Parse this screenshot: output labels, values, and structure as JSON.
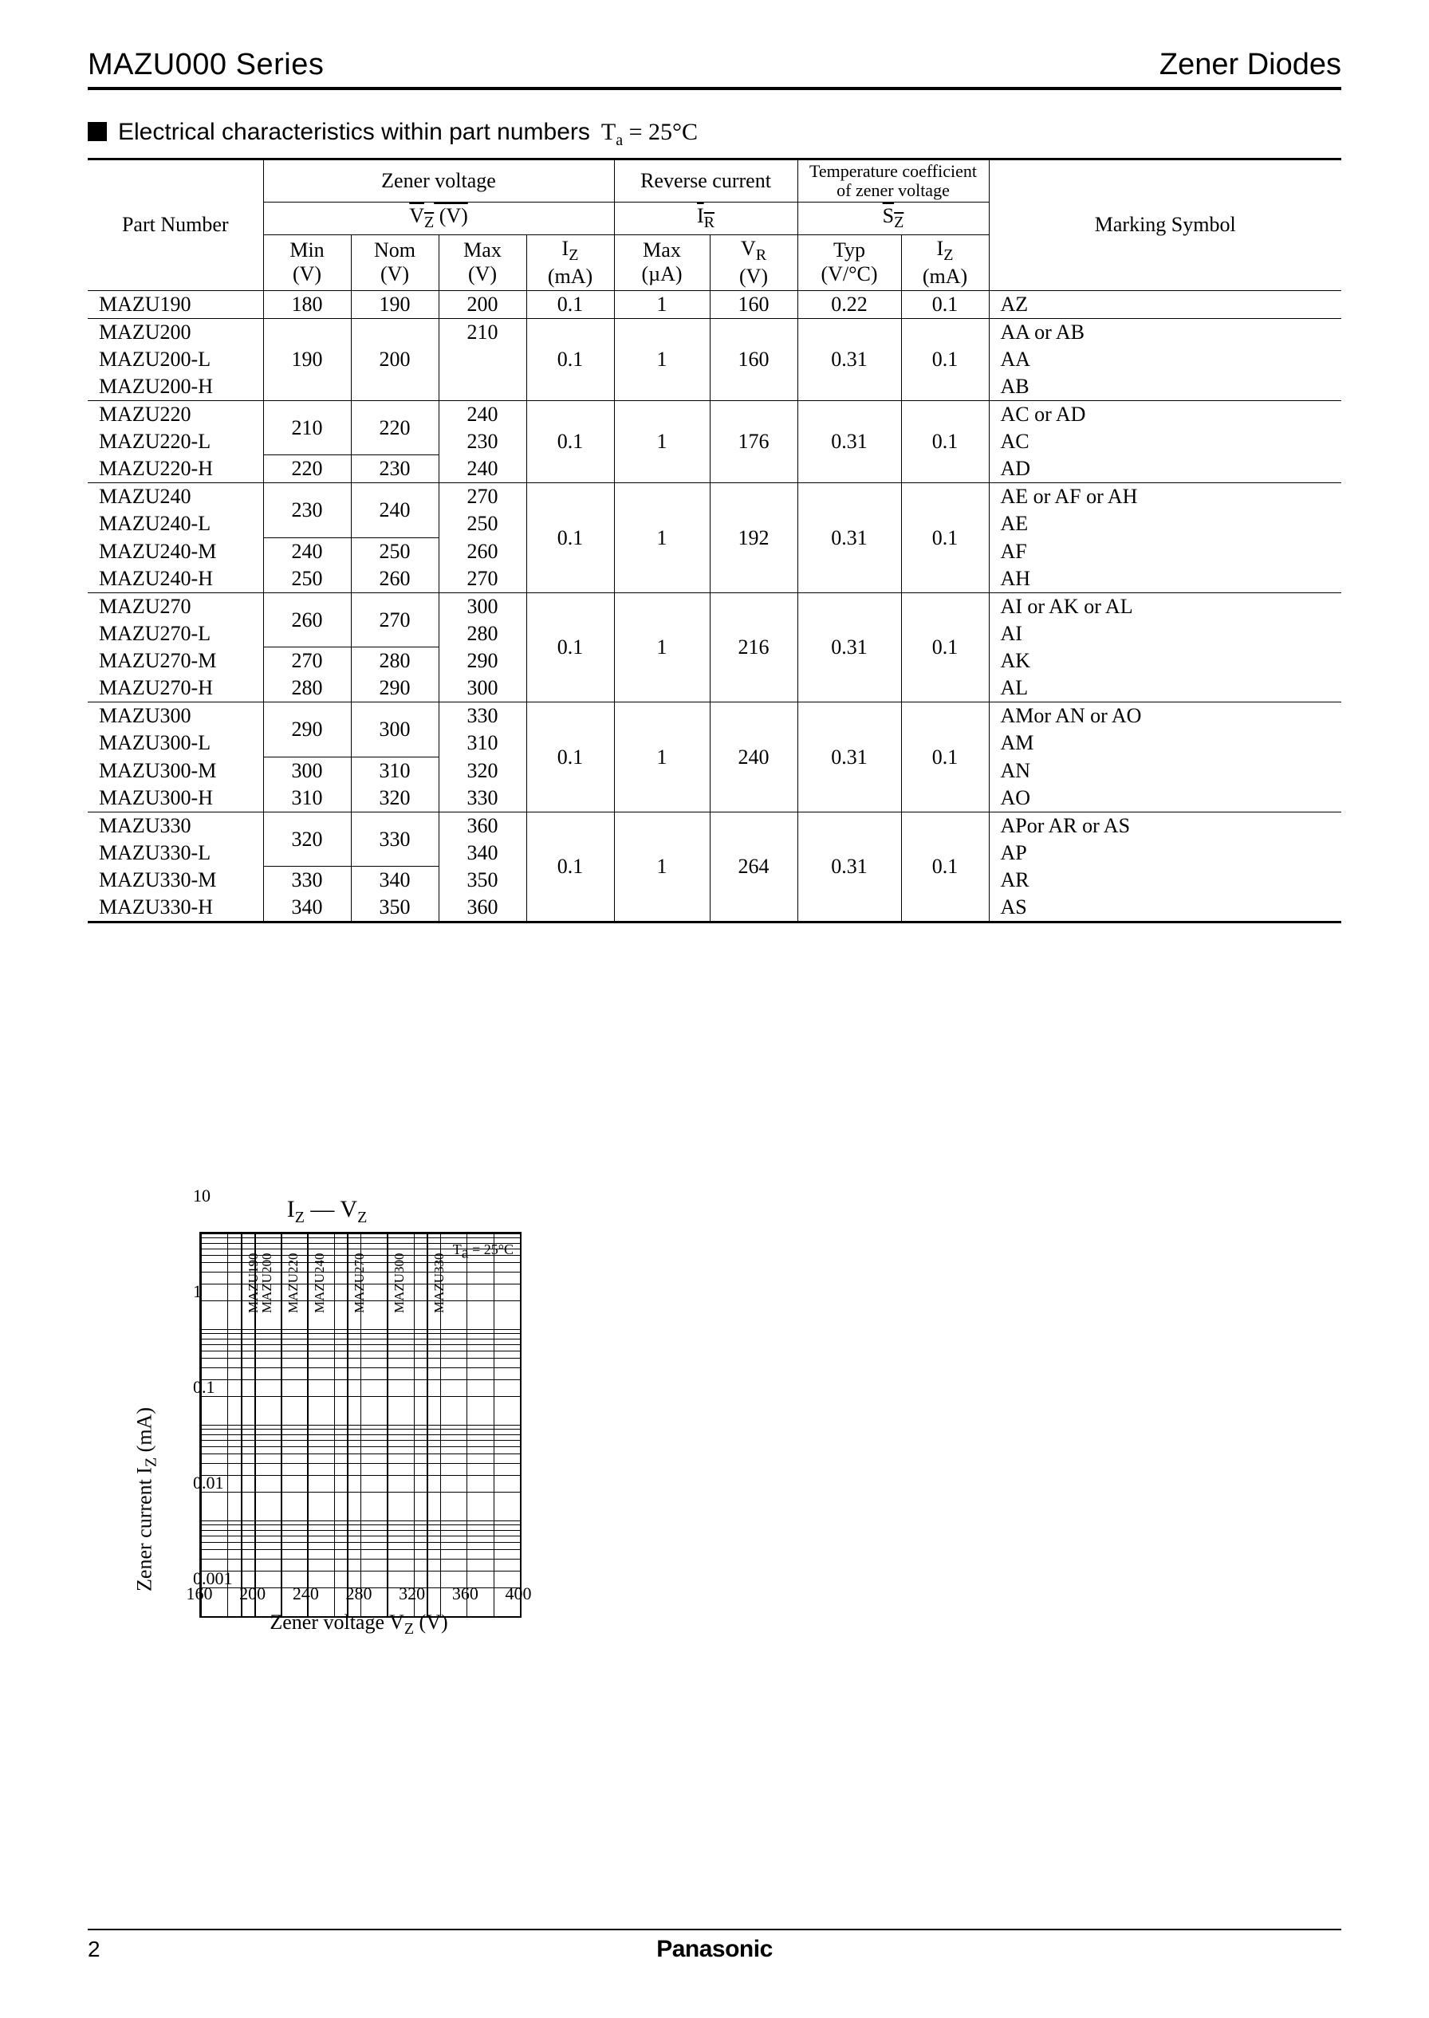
{
  "header": {
    "left": "MAZU000 Series",
    "right": "Zener Diodes"
  },
  "section": {
    "title": "Electrical characteristics within part numbers",
    "condition_prefix": "T",
    "condition_sub": "a",
    "condition_rest": " = 25°C"
  },
  "table": {
    "group_headers": {
      "part_number": "Part Number",
      "zener_voltage": "Zener voltage",
      "reverse_current": "Reverse current",
      "temp_coeff_l1": "Temperature coefficient",
      "temp_coeff_l2": "of zener voltage",
      "marking": "Marking Symbol"
    },
    "sub_headers": {
      "vz": "V",
      "vz_sub": "Z",
      "vz_unit": " (V)",
      "ir": "I",
      "ir_sub": "R",
      "sz": "S",
      "sz_sub": "Z"
    },
    "cols": {
      "min": "Min",
      "min_u": "(V)",
      "nom": "Nom",
      "nom_u": "(V)",
      "max": "Max",
      "max_u": "(V)",
      "iz": "I",
      "iz_sub": "Z",
      "iz_u": "(mA)",
      "irmax": "Max",
      "irmax_u": "(µA)",
      "vr": "V",
      "vr_sub": "R",
      "vr_u": "(V)",
      "typ": "Typ",
      "typ_u": "(V/°C)",
      "iz2": "I",
      "iz2_sub": "Z",
      "iz2_u": "(mA)"
    },
    "groups": [
      {
        "rows": [
          {
            "pn": "MAZU190",
            "min": "180",
            "nom": "190",
            "max": "200",
            "iz": "0.1",
            "irmax": "1",
            "vr": "160",
            "typ": "0.22",
            "iz2": "0.1",
            "mark": "AZ"
          }
        ],
        "sep": "thin"
      },
      {
        "rows": [
          {
            "pn": "MAZU200",
            "min": "190",
            "nom": "200",
            "max": "210",
            "iz": "0.1",
            "irmax": "1",
            "vr": "160",
            "typ": "0.31",
            "iz2": "0.1",
            "mark": "AA or AB",
            "span": 3
          },
          {
            "pn": "MAZU200-L",
            "mark": "AA"
          },
          {
            "pn": "MAZU200-H",
            "mark": "AB"
          }
        ],
        "sep": "thin"
      },
      {
        "rows": [
          {
            "pn": "MAZU220",
            "min": "210",
            "nom": "220",
            "max": "240",
            "iz": "0.1",
            "irmax": "1",
            "vr": "176",
            "typ": "0.31",
            "iz2": "0.1",
            "mark": "AC or AD",
            "span_mn": 2,
            "span_rest": 3
          },
          {
            "pn": "MAZU220-L",
            "max": "230",
            "mark": "AC"
          },
          {
            "pn": "MAZU220-H",
            "min": "220",
            "nom": "230",
            "max": "240",
            "mark": "AD"
          }
        ],
        "sep": "thin"
      },
      {
        "rows": [
          {
            "pn": "MAZU240",
            "min": "230",
            "nom": "240",
            "max": "270",
            "iz": "0.1",
            "irmax": "1",
            "vr": "192",
            "typ": "0.31",
            "iz2": "0.1",
            "mark": "AE or AF or AH",
            "span_mn": 2,
            "span_rest": 4
          },
          {
            "pn": "MAZU240-L",
            "max": "250",
            "mark": "AE"
          },
          {
            "pn": "MAZU240-M",
            "min": "240",
            "nom": "250",
            "max": "260",
            "mark": "AF"
          },
          {
            "pn": "MAZU240-H",
            "min": "250",
            "nom": "260",
            "max": "270",
            "mark": "AH"
          }
        ],
        "sep": "thin"
      },
      {
        "rows": [
          {
            "pn": "MAZU270",
            "min": "260",
            "nom": "270",
            "max": "300",
            "iz": "0.1",
            "irmax": "1",
            "vr": "216",
            "typ": "0.31",
            "iz2": "0.1",
            "mark": "AI or AK or AL",
            "span_mn": 2,
            "span_rest": 4
          },
          {
            "pn": "MAZU270-L",
            "max": "280",
            "mark": "AI"
          },
          {
            "pn": "MAZU270-M",
            "min": "270",
            "nom": "280",
            "max": "290",
            "mark": "AK"
          },
          {
            "pn": "MAZU270-H",
            "min": "280",
            "nom": "290",
            "max": "300",
            "mark": "AL"
          }
        ],
        "sep": "thin"
      },
      {
        "rows": [
          {
            "pn": "MAZU300",
            "min": "290",
            "nom": "300",
            "max": "330",
            "iz": "0.1",
            "irmax": "1",
            "vr": "240",
            "typ": "0.31",
            "iz2": "0.1",
            "mark": "AMor AN or AO",
            "span_mn": 2,
            "span_rest": 4
          },
          {
            "pn": "MAZU300-L",
            "max": "310",
            "mark": "AM"
          },
          {
            "pn": "MAZU300-M",
            "min": "300",
            "nom": "310",
            "max": "320",
            "mark": "AN"
          },
          {
            "pn": "MAZU300-H",
            "min": "310",
            "nom": "320",
            "max": "330",
            "mark": "AO"
          }
        ],
        "sep": "thin"
      },
      {
        "rows": [
          {
            "pn": "MAZU330",
            "min": "320",
            "nom": "330",
            "max": "360",
            "iz": "0.1",
            "irmax": "1",
            "vr": "264",
            "typ": "0.31",
            "iz2": "0.1",
            "mark": "APor AR or AS",
            "span_mn": 2,
            "span_rest": 4
          },
          {
            "pn": "MAZU330-L",
            "max": "340",
            "mark": "AP"
          },
          {
            "pn": "MAZU330-M",
            "min": "330",
            "nom": "340",
            "max": "350",
            "mark": "AR"
          },
          {
            "pn": "MAZU330-H",
            "min": "340",
            "nom": "350",
            "max": "360",
            "mark": "AS"
          }
        ],
        "sep": "thick"
      }
    ]
  },
  "chart": {
    "title_l": "I",
    "title_lsub": "Z",
    "title_dash": " — ",
    "title_r": "V",
    "title_rsub": "Z",
    "ylabel_pre": "Zener current  I",
    "ylabel_sub": "Z",
    "ylabel_post": "   (mA)",
    "xlabel_pre": "Zener voltage  V",
    "xlabel_sub": "Z",
    "xlabel_post": "   (V)",
    "ta_pre": "T",
    "ta_sub": "a",
    "ta_post": " = 25°C",
    "xticks": [
      "160",
      "200",
      "240",
      "280",
      "320",
      "360",
      "400"
    ],
    "yticks": [
      "0.001",
      "0.01",
      "0.1",
      "1",
      "10"
    ],
    "xlim": [
      160,
      400
    ],
    "series": [
      {
        "name": "MAZU190",
        "v_at_0p1": 190
      },
      {
        "name": "MAZU200",
        "v_at_0p1": 200
      },
      {
        "name": "MAZU220",
        "v_at_0p1": 220
      },
      {
        "name": "MAZU240",
        "v_at_0p1": 240
      },
      {
        "name": "MAZU270",
        "v_at_0p1": 270
      },
      {
        "name": "MAZU300",
        "v_at_0p1": 300
      },
      {
        "name": "MAZU330",
        "v_at_0p1": 330
      }
    ],
    "colors": {
      "line": "#000000",
      "grid": "#000000",
      "bg": "#ffffff"
    }
  },
  "footer": {
    "page": "2",
    "brand": "Panasonic"
  }
}
